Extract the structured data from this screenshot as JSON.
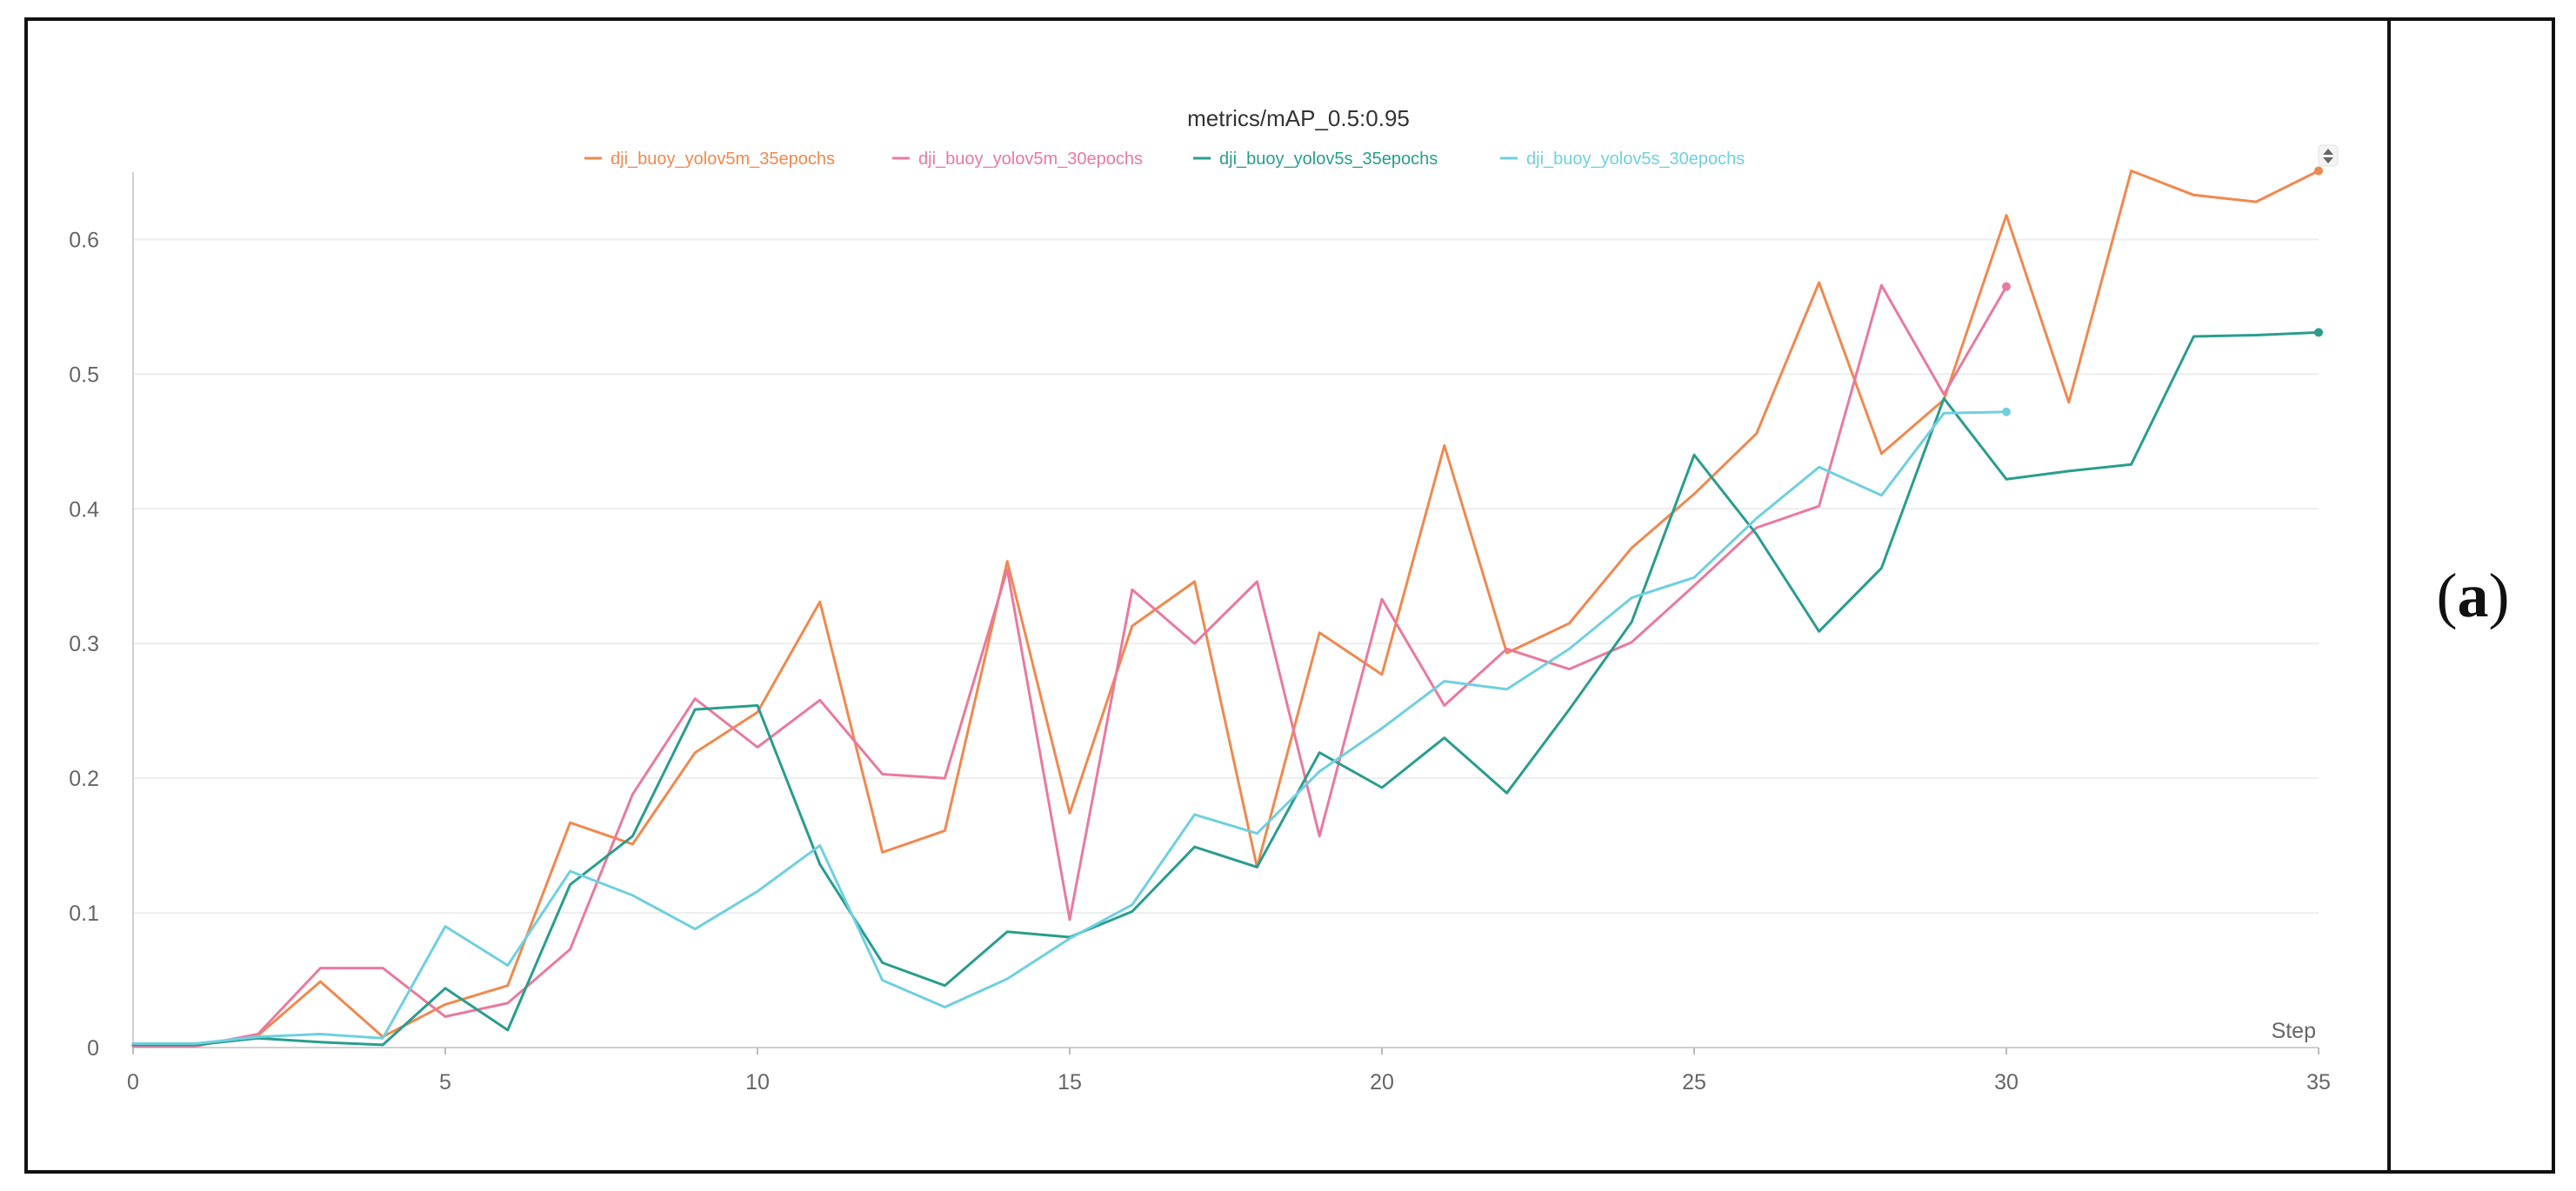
{
  "panel_label": {
    "open": "(",
    "letter": "a",
    "close": ")"
  },
  "chart_data": {
    "type": "line",
    "title": "metrics/mAP_0.5:0.95",
    "xlabel": "Step",
    "ylabel": "",
    "xlim": [
      0,
      35
    ],
    "ylim": [
      0,
      0.65
    ],
    "xticks": [
      0,
      5,
      10,
      15,
      20,
      25,
      30,
      35
    ],
    "yticks": [
      0,
      0.1,
      0.2,
      0.3,
      0.4,
      0.5,
      0.6
    ],
    "ytick_labels": [
      "0",
      "0.1",
      "0.2",
      "0.3",
      "0.4",
      "0.5",
      "0.6"
    ],
    "grid": true,
    "legend_position": "top",
    "series": [
      {
        "name": "dji_buoy_yolov5m_35epochs",
        "color": "#f0894f",
        "x": [
          0,
          1,
          2,
          3,
          4,
          5,
          6,
          7,
          8,
          9,
          10,
          11,
          12,
          13,
          14,
          15,
          16,
          17,
          18,
          19,
          20,
          21,
          22,
          23,
          24,
          25,
          26,
          27,
          28,
          29,
          30,
          31,
          32,
          33,
          34,
          35
        ],
        "values": [
          0.002,
          0.002,
          0.009,
          0.049,
          0.008,
          0.032,
          0.046,
          0.167,
          0.151,
          0.219,
          0.249,
          0.331,
          0.145,
          0.161,
          0.361,
          0.174,
          0.313,
          0.346,
          0.134,
          0.308,
          0.277,
          0.447,
          0.293,
          0.315,
          0.371,
          0.411,
          0.456,
          0.568,
          0.441,
          0.481,
          0.618,
          0.479,
          0.651,
          0.633,
          0.628,
          0.651
        ]
      },
      {
        "name": "dji_buoy_yolov5m_30epochs",
        "color": "#e97a9e",
        "x": [
          0,
          1,
          2,
          3,
          4,
          5,
          6,
          7,
          8,
          9,
          10,
          11,
          12,
          13,
          14,
          15,
          16,
          17,
          18,
          19,
          20,
          21,
          22,
          23,
          24,
          25,
          26,
          27,
          28,
          29,
          30
        ],
        "values": [
          0.001,
          0.001,
          0.01,
          0.059,
          0.059,
          0.023,
          0.033,
          0.073,
          0.188,
          0.259,
          0.223,
          0.258,
          0.203,
          0.2,
          0.355,
          0.095,
          0.34,
          0.3,
          0.346,
          0.157,
          0.333,
          0.254,
          0.296,
          0.281,
          0.301,
          0.343,
          0.386,
          0.402,
          0.566,
          0.485,
          0.565
        ]
      },
      {
        "name": "dji_buoy_yolov5s_35epochs",
        "color": "#299d8e",
        "x": [
          0,
          1,
          2,
          3,
          4,
          5,
          6,
          7,
          8,
          9,
          10,
          11,
          12,
          13,
          14,
          15,
          16,
          17,
          18,
          19,
          20,
          21,
          22,
          23,
          24,
          25,
          26,
          27,
          28,
          29,
          30,
          31,
          32,
          33,
          34,
          35
        ],
        "values": [
          0.002,
          0.002,
          0.007,
          0.004,
          0.002,
          0.044,
          0.013,
          0.121,
          0.157,
          0.251,
          0.254,
          0.136,
          0.063,
          0.046,
          0.086,
          0.082,
          0.101,
          0.149,
          0.134,
          0.219,
          0.193,
          0.23,
          0.189,
          0.251,
          0.316,
          0.44,
          0.381,
          0.309,
          0.356,
          0.482,
          0.422,
          0.428,
          0.433,
          0.528,
          0.529,
          0.531
        ]
      },
      {
        "name": "dji_buoy_yolov5s_30epochs",
        "color": "#6fd0e0",
        "x": [
          0,
          1,
          2,
          3,
          4,
          5,
          6,
          7,
          8,
          9,
          10,
          11,
          12,
          13,
          14,
          15,
          16,
          17,
          18,
          19,
          20,
          21,
          22,
          23,
          24,
          25,
          26,
          27,
          28,
          29,
          30
        ],
        "values": [
          0.003,
          0.003,
          0.008,
          0.01,
          0.007,
          0.09,
          0.061,
          0.131,
          0.113,
          0.088,
          0.116,
          0.15,
          0.05,
          0.03,
          0.051,
          0.081,
          0.106,
          0.173,
          0.159,
          0.205,
          0.237,
          0.272,
          0.266,
          0.296,
          0.334,
          0.349,
          0.393,
          0.431,
          0.41,
          0.471,
          0.472
        ]
      }
    ]
  }
}
